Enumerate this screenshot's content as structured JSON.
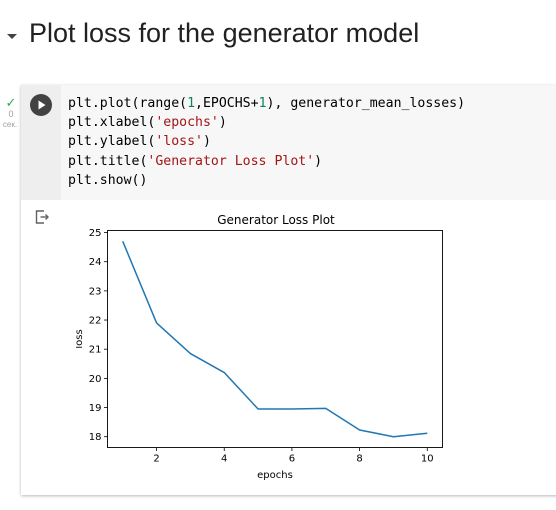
{
  "section": {
    "title": "Plot loss for the generator model"
  },
  "status": {
    "duration": "0",
    "unit": "сек."
  },
  "code": {
    "lines": [
      [
        "plt.plot(range(",
        {
          "t": "1",
          "c": "num"
        },
        ",EPOCHS+",
        {
          "t": "1",
          "c": "num"
        },
        "), generator_mean_losses)"
      ],
      [
        "plt.xlabel(",
        {
          "t": "'epochs'",
          "c": "str"
        },
        ")"
      ],
      [
        "plt.ylabel(",
        {
          "t": "'loss'",
          "c": "str"
        },
        ")"
      ],
      [
        "plt.title(",
        {
          "t": "'Generator Loss Plot'",
          "c": "str"
        },
        ")"
      ],
      [
        "plt.show()"
      ]
    ]
  },
  "chart_data": {
    "type": "line",
    "title": "Generator Loss Plot",
    "xlabel": "epochs",
    "ylabel": "loss",
    "x": [
      1,
      2,
      3,
      4,
      5,
      6,
      7,
      8,
      9,
      10
    ],
    "series": [
      {
        "values": [
          24.7,
          21.9,
          20.85,
          20.2,
          18.95,
          18.95,
          18.97,
          18.23,
          18.0,
          18.12
        ],
        "color": "#1f77b4"
      }
    ],
    "xlim": [
      0.55,
      10.45
    ],
    "ylim": [
      17.63,
      25.07
    ],
    "xticks": [
      2,
      4,
      6,
      8,
      10
    ],
    "yticks": [
      18,
      19,
      20,
      21,
      22,
      23,
      24,
      25
    ],
    "grid": false
  }
}
